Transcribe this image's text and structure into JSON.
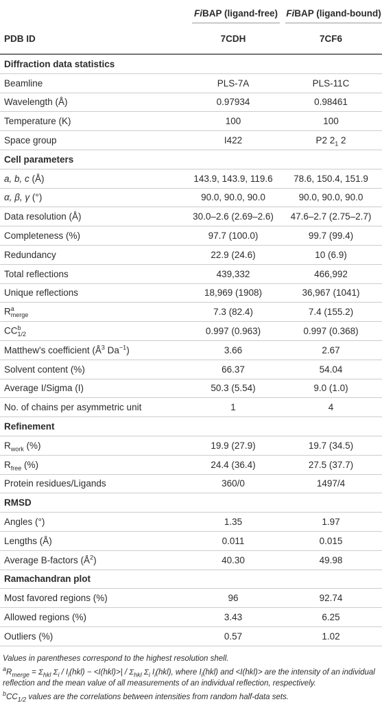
{
  "header": {
    "columns": [
      [
        {
          "i": "Fi"
        },
        {
          "t": "BAP (ligand-free)"
        }
      ],
      [
        {
          "i": "Fi"
        },
        {
          "t": "BAP (ligand-bound)"
        }
      ]
    ],
    "pdb_label": "PDB ID",
    "pdb_ids": [
      "7CDH",
      "7CF6"
    ]
  },
  "sections": [
    {
      "title": "Diffraction data statistics",
      "rows": [
        {
          "label": "Beamline",
          "values": [
            "PLS-7A",
            "PLS-11C"
          ]
        },
        {
          "label": "Wavelength (Å)",
          "values": [
            "0.97934",
            "0.98461"
          ]
        },
        {
          "label": "Temperature (K)",
          "values": [
            "100",
            "100"
          ]
        },
        {
          "label": "Space group",
          "values": [
            "I422",
            [
              {
                "t": "P2 2"
              },
              {
                "sub": "1"
              },
              {
                "t": " 2"
              }
            ]
          ]
        }
      ]
    },
    {
      "title": "Cell parameters",
      "rows": [
        {
          "label": [
            {
              "i": "a, b, c"
            },
            {
              "t": " (Å)"
            }
          ],
          "values": [
            "143.9, 143.9, 119.6",
            "78.6, 150.4, 151.9"
          ]
        },
        {
          "label": [
            {
              "i": "α, β, γ"
            },
            {
              "t": " (°)"
            }
          ],
          "values": [
            "90.0, 90.0, 90.0",
            "90.0, 90.0, 90.0"
          ]
        },
        {
          "label": "Data resolution (Å)",
          "values": [
            "30.0–2.6 (2.69–2.6)",
            "47.6–2.7 (2.75–2.7)"
          ]
        },
        {
          "label": "Completeness (%)",
          "values": [
            "97.7 (100.0)",
            "99.7 (99.4)"
          ]
        },
        {
          "label": "Redundancy",
          "values": [
            "22.9 (24.6)",
            "10 (6.9)"
          ]
        },
        {
          "label": "Total reflections",
          "values": [
            "439,332",
            "466,992"
          ]
        },
        {
          "label": "Unique reflections",
          "values": [
            "18,969 (1908)",
            "36,967 (1041)"
          ]
        },
        {
          "label": [
            {
              "t": "R"
            },
            {
              "supsub": [
                "a",
                "merge"
              ]
            }
          ],
          "values": [
            "7.3 (82.4)",
            "7.4 (155.2)"
          ]
        },
        {
          "label": [
            {
              "t": "CC"
            },
            {
              "supsub": [
                "b",
                "1/2"
              ]
            }
          ],
          "values": [
            "0.997 (0.963)",
            "0.997 (0.368)"
          ]
        },
        {
          "label": [
            {
              "t": "Matthew's coefficient (Å"
            },
            {
              "sup": "3"
            },
            {
              "t": " Da"
            },
            {
              "sup": "−1"
            },
            {
              "t": ")"
            }
          ],
          "values": [
            "3.66",
            "2.67"
          ]
        },
        {
          "label": "Solvent content (%)",
          "values": [
            "66.37",
            "54.04"
          ]
        },
        {
          "label": "Average I/Sigma (I)",
          "values": [
            "50.3 (5.54)",
            "9.0 (1.0)"
          ]
        },
        {
          "label": "No. of chains per asymmetric unit",
          "values": [
            "1",
            "4"
          ]
        }
      ]
    },
    {
      "title": "Refinement",
      "rows": [
        {
          "label": [
            {
              "t": "R"
            },
            {
              "sub": "work"
            },
            {
              "t": " (%)"
            }
          ],
          "values": [
            "19.9 (27.9)",
            "19.7 (34.5)"
          ]
        },
        {
          "label": [
            {
              "t": "R"
            },
            {
              "sub": "free"
            },
            {
              "t": " (%)"
            }
          ],
          "values": [
            "24.4 (36.4)",
            "27.5 (37.7)"
          ]
        },
        {
          "label": "Protein residues/Ligands",
          "values": [
            "360/0",
            "1497/4"
          ]
        }
      ]
    },
    {
      "title": "RMSD",
      "rows": [
        {
          "label": "Angles (°)",
          "values": [
            "1.35",
            "1.97"
          ]
        },
        {
          "label": "Lengths (Å)",
          "values": [
            "0.011",
            "0.015"
          ]
        },
        {
          "label": [
            {
              "t": "Average B-factors (Å"
            },
            {
              "sup": "2"
            },
            {
              "t": ")"
            }
          ],
          "values": [
            "40.30",
            "49.98"
          ]
        }
      ]
    },
    {
      "title": "Ramachandran plot",
      "rows": [
        {
          "label": "Most favored regions (%)",
          "values": [
            "96",
            "92.74"
          ]
        },
        {
          "label": "Allowed regions (%)",
          "values": [
            "3.43",
            "6.25"
          ]
        },
        {
          "label": "Outliers (%)",
          "values": [
            "0.57",
            "1.02"
          ]
        }
      ]
    }
  ],
  "footnotes": [
    "Values in parentheses correspond to the highest resolution shell.",
    [
      {
        "sup": "a"
      },
      {
        "t": "R"
      },
      {
        "sub": "merge"
      },
      {
        "t": " = Σ"
      },
      {
        "sub": "hkl"
      },
      {
        "t": " Σ"
      },
      {
        "sub": "i"
      },
      {
        "t": " / I"
      },
      {
        "sub": "i"
      },
      {
        "t": "(hkl) − <I(hkl)>| / Σ"
      },
      {
        "sub": "hkl"
      },
      {
        "t": " Σ"
      },
      {
        "sub": "i"
      },
      {
        "t": " I"
      },
      {
        "sub": "i"
      },
      {
        "t": "(hkl), where I"
      },
      {
        "sub": "i"
      },
      {
        "t": "(hkl) and <I(hkl)> are the intensity of an individual reflection and the mean value of all measurements of an individual reflection, respectively."
      }
    ],
    [
      {
        "sup": "b"
      },
      {
        "t": "CC"
      },
      {
        "sub": "1/2"
      },
      {
        "t": " values are the correlations between intensities from random half-data sets."
      }
    ]
  ]
}
